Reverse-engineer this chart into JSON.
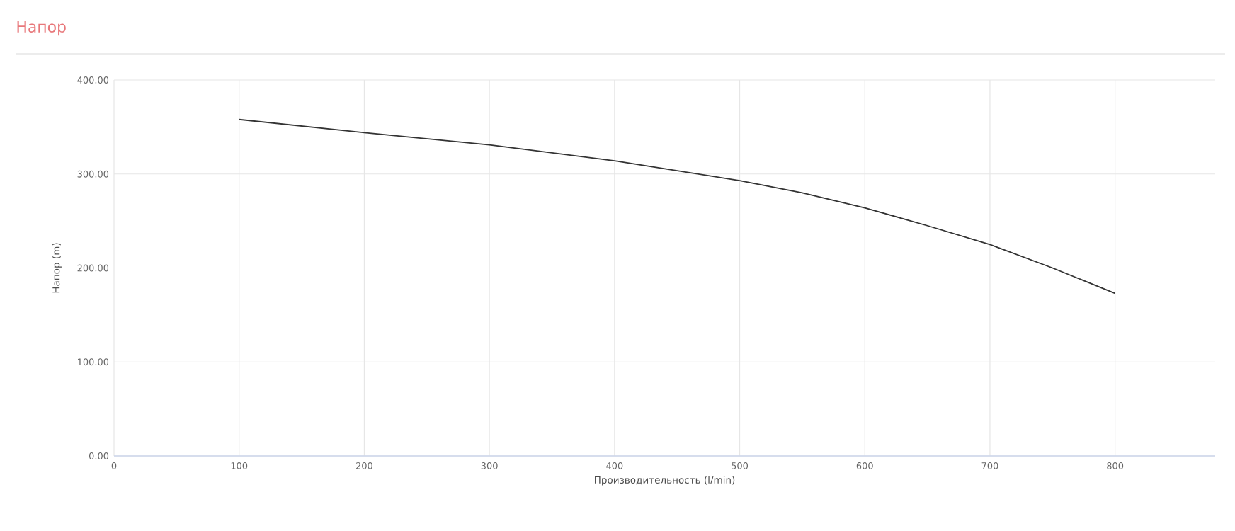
{
  "chart_data": {
    "type": "line",
    "title": "Напор",
    "xlabel": "Производительность (l/min)",
    "ylabel": "Напор (m)",
    "x": [
      100,
      200,
      300,
      400,
      500,
      550,
      600,
      650,
      700,
      750,
      800
    ],
    "series": [
      {
        "color": "#333333",
        "values": [
          358,
          344,
          331,
          314,
          293,
          280,
          264,
          245,
          225,
          200,
          173
        ]
      }
    ],
    "xlim": [
      0,
      880
    ],
    "xticks": [
      0,
      100,
      200,
      300,
      400,
      500,
      600,
      700,
      800
    ],
    "ylim": [
      0,
      400
    ],
    "yticks": [
      {
        "value": 0,
        "label": "0.00"
      },
      {
        "value": 100,
        "label": "100.00"
      },
      {
        "value": 200,
        "label": "200.00"
      },
      {
        "value": 300,
        "label": "300.00"
      },
      {
        "value": 400,
        "label": "400.00"
      }
    ],
    "grid": true,
    "legend": false,
    "marker": "none",
    "line_style": "solid"
  }
}
